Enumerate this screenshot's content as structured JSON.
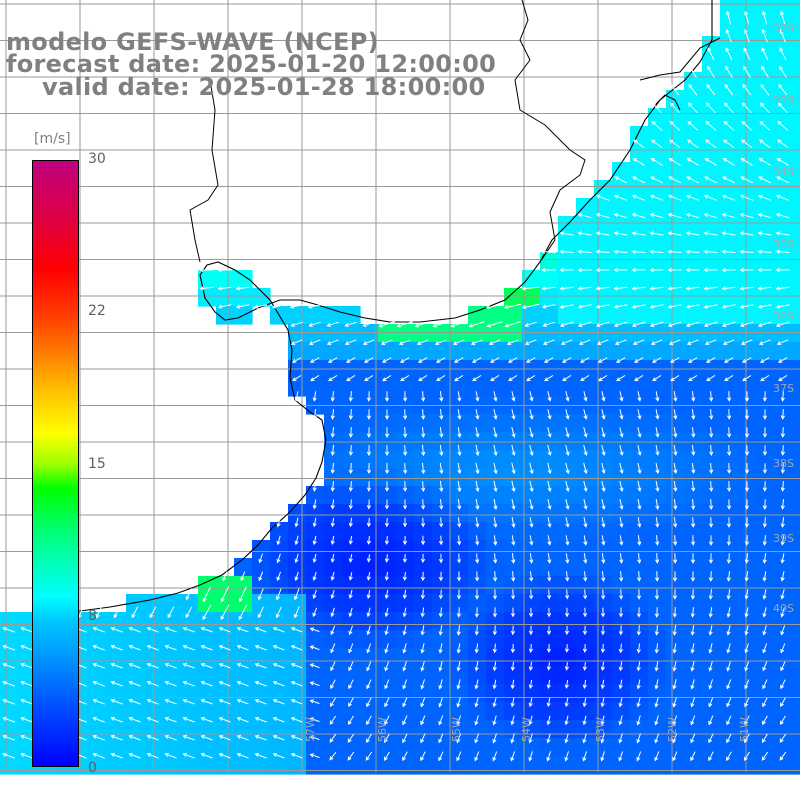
{
  "header": {
    "line1": "modelo GEFS-WAVE (NCEP)",
    "line2": "forecast date: 2025-01-20 12:00:00",
    "line3": "valid date: 2025-01-28 18:00:00"
  },
  "colorbar": {
    "unit": "[m/s]",
    "ticks": [
      "30",
      "22",
      "15",
      "8",
      "0"
    ],
    "min": 0,
    "max": 30,
    "colors": [
      "#0000ff",
      "#0096ff",
      "#00ffff",
      "#00ff00",
      "#ffff00",
      "#ff8000",
      "#ff0000",
      "#c00080"
    ]
  },
  "lat_labels": [
    "32S",
    "33S",
    "34S",
    "35S",
    "36S",
    "37S",
    "38S",
    "39S",
    "40S"
  ],
  "lon_labels": [
    "57W",
    "56W",
    "55W",
    "54W",
    "53W",
    "52W",
    "51W"
  ],
  "colors": {
    "land": "#ffffff",
    "grid": "#9a9a9a",
    "coast": "#000000",
    "arrow": "#ffffff",
    "text": "#808080"
  }
}
